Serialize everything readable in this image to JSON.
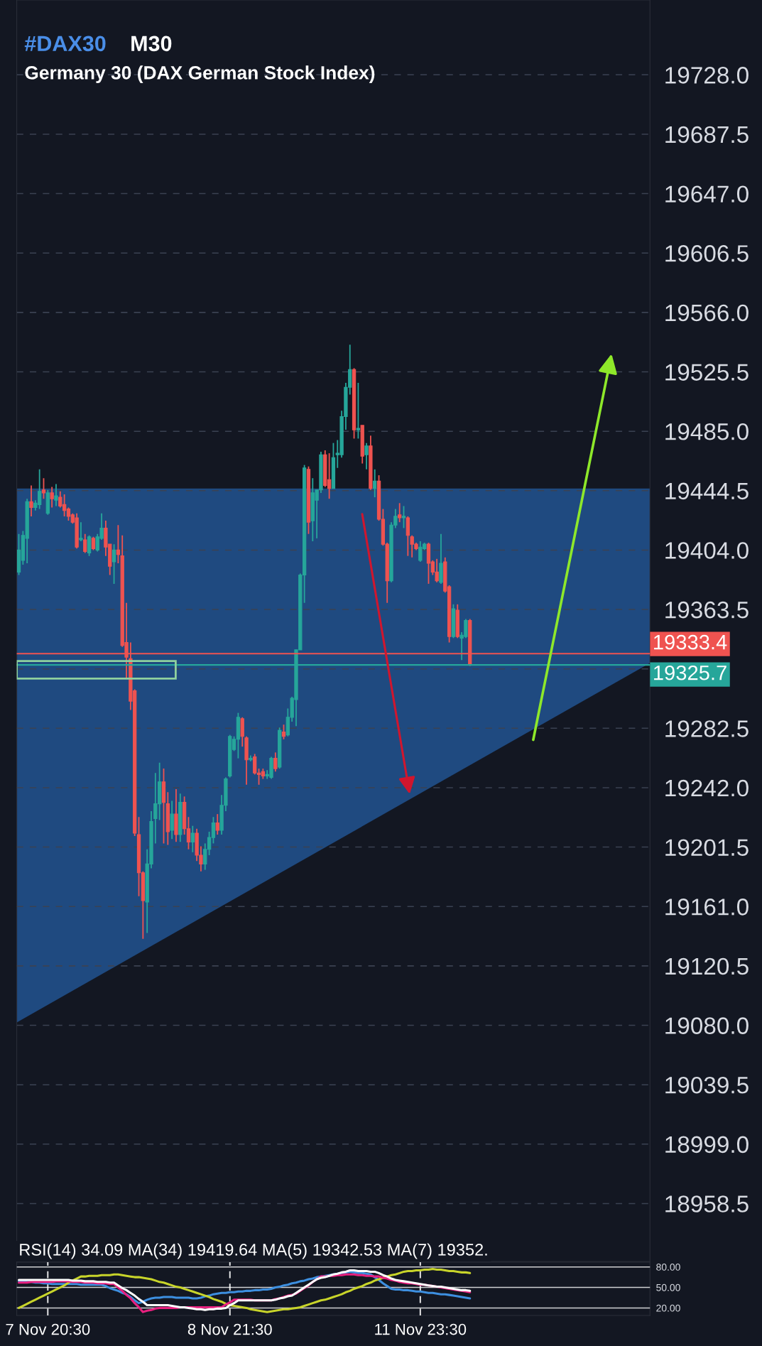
{
  "chart_data": [
    {
      "type": "candlestick",
      "title": "#DAX30",
      "subtitle": "Germany 30 (DAX German Stock Index)",
      "annotations": [
        "M30"
      ],
      "categories": [
        null,
        null,
        null,
        null,
        null,
        null,
        null,
        null,
        null,
        null,
        null,
        null,
        null,
        null,
        null,
        null,
        null,
        null,
        null,
        null,
        null,
        null,
        null,
        null,
        null,
        null,
        null,
        null,
        null,
        null,
        null,
        null,
        null,
        null,
        null,
        null,
        null,
        null,
        null,
        null,
        null,
        null,
        null,
        null,
        null,
        null,
        null,
        null,
        null,
        null,
        null,
        null,
        null,
        null,
        null,
        null,
        null,
        null,
        null,
        null,
        null,
        null,
        null,
        null,
        null,
        null,
        null,
        null,
        null,
        null,
        null,
        null,
        null,
        null,
        null,
        null,
        null,
        null,
        null,
        null,
        null,
        null,
        null,
        null,
        null,
        null,
        null,
        null,
        null,
        null,
        null,
        null,
        null,
        null,
        null,
        null,
        null,
        null,
        null,
        null,
        null,
        null,
        null,
        null,
        null,
        null,
        null,
        null,
        null,
        null,
        null,
        null,
        null,
        null,
        null,
        null,
        null,
        null,
        null,
        null,
        null,
        null,
        null,
        null,
        null,
        null,
        null,
        null,
        null,
        null,
        null,
        null,
        null,
        null,
        null,
        null,
        null,
        null,
        null,
        null,
        null,
        null,
        null,
        null,
        null,
        null,
        null,
        null,
        null,
        null,
        null,
        null,
        null
      ],
      "ohlc": [
        [
          19389,
          19415,
          19387,
          19404
        ],
        [
          19397,
          19417,
          19394,
          19414
        ],
        [
          19412,
          19439,
          19395,
          19437
        ],
        [
          19437,
          19448,
          19427,
          19433
        ],
        [
          19433,
          19438,
          19431,
          19436
        ],
        [
          19435,
          19459,
          19432,
          19444
        ],
        [
          19445,
          19453,
          19439,
          19443
        ],
        [
          19429,
          19445,
          19428,
          19443
        ],
        [
          19443,
          19447,
          19433,
          19439
        ],
        [
          19438,
          19449,
          19434,
          19441
        ],
        [
          19440,
          19444,
          19433,
          19434
        ],
        [
          19435,
          19442,
          19427,
          19431
        ],
        [
          19432,
          19433,
          19424,
          19427
        ],
        [
          19428,
          19429,
          19422,
          19423
        ],
        [
          19426,
          19429,
          19405,
          19406
        ],
        [
          19411,
          19423,
          19410,
          19412
        ],
        [
          19411,
          19415,
          19402,
          19403
        ],
        [
          19402,
          19414,
          19400,
          19413
        ],
        [
          19412,
          19413,
          19404,
          19405
        ],
        [
          19404,
          19415,
          19403,
          19413
        ],
        [
          19412,
          19429,
          19411,
          19419
        ],
        [
          19419,
          19424,
          19400,
          19406
        ],
        [
          19408,
          19408,
          19387,
          19393
        ],
        [
          19396,
          19408,
          19381,
          19404
        ],
        [
          19404,
          19421,
          19395,
          19401
        ],
        [
          19400,
          19414,
          19338,
          19339
        ],
        [
          19341,
          19368,
          19317,
          19331
        ],
        [
          19330,
          19341,
          19295,
          19301
        ],
        [
          19308,
          19309,
          19209,
          19211
        ],
        [
          19210,
          19222,
          19168,
          19184
        ],
        [
          19184,
          19185,
          19139,
          19165
        ],
        [
          19164,
          19200,
          19143,
          19190
        ],
        [
          19190,
          19226,
          19187,
          19219
        ],
        [
          19221,
          19252,
          19204,
          19231
        ],
        [
          19231,
          19259,
          19220,
          19246
        ],
        [
          19246,
          19255,
          19204,
          19232
        ],
        [
          19231,
          19239,
          19203,
          19212
        ],
        [
          19213,
          19233,
          19207,
          19224
        ],
        [
          19224,
          19241,
          19205,
          19210
        ],
        [
          19210,
          19238,
          19205,
          19232
        ],
        [
          19232,
          19236,
          19210,
          19214
        ],
        [
          19214,
          19222,
          19200,
          19205
        ],
        [
          19205,
          19216,
          19198,
          19211
        ],
        [
          19211,
          19214,
          19192,
          19196
        ],
        [
          19196,
          19202,
          19185,
          19190
        ],
        [
          19190,
          19204,
          19186,
          19200
        ],
        [
          19200,
          19212,
          19196,
          19208
        ],
        [
          19208,
          19222,
          19204,
          19218
        ],
        [
          19218,
          19224,
          19210,
          19213
        ],
        [
          19213,
          19237,
          19210,
          19230
        ],
        [
          19230,
          19249,
          19226,
          19248
        ],
        [
          19250,
          19278,
          19249,
          19277
        ],
        [
          19268,
          19277,
          19267,
          19275
        ],
        [
          19275,
          19293,
          19262,
          19290
        ],
        [
          19289,
          19290,
          19270,
          19277
        ],
        [
          19276,
          19277,
          19244,
          19261
        ],
        [
          19261,
          19264,
          19260,
          19262
        ],
        [
          19263,
          19265,
          19251,
          19252
        ],
        [
          19252,
          19255,
          19244,
          19251
        ],
        [
          19253,
          19255,
          19248,
          19250
        ],
        [
          19250,
          19254,
          19248,
          19251
        ],
        [
          19249,
          19263,
          19248,
          19262
        ],
        [
          19262,
          19266,
          19253,
          19255
        ],
        [
          19256,
          19283,
          19255,
          19281
        ],
        [
          19280,
          19285,
          19275,
          19277
        ],
        [
          19278,
          19296,
          19277,
          19290
        ],
        [
          19290,
          19304,
          19287,
          19303
        ],
        [
          19302,
          19336,
          19284,
          19336
        ],
        [
          19336,
          19388,
          19336,
          19387
        ],
        [
          19387,
          19462,
          19368,
          19460
        ],
        [
          19459,
          19461,
          19415,
          19423
        ],
        [
          19424,
          19453,
          19410,
          19443
        ],
        [
          19438,
          19445,
          19412,
          19445
        ],
        [
          19445,
          19471,
          19443,
          19469
        ],
        [
          19469,
          19472,
          19447,
          19448
        ],
        [
          19452,
          19470,
          19439,
          19446
        ],
        [
          19446,
          19477,
          19446,
          19467
        ],
        [
          19469,
          19479,
          19460,
          19470
        ],
        [
          19469,
          19499,
          19467,
          19495
        ],
        [
          19495,
          19518,
          19486,
          19515
        ],
        [
          19515,
          19544,
          19510,
          19527
        ],
        [
          19527,
          19528,
          19480,
          19486
        ],
        [
          19486,
          19518,
          19480,
          19487
        ],
        [
          19489,
          19489,
          19463,
          19468
        ],
        [
          19469,
          19477,
          19459,
          19475
        ],
        [
          19475,
          19482,
          19445,
          19446
        ],
        [
          19446,
          19459,
          19440,
          19451
        ],
        [
          19451,
          19455,
          19424,
          19425
        ],
        [
          19425,
          19432,
          19407,
          19408
        ],
        [
          19408,
          19409,
          19368,
          19383
        ],
        [
          19383,
          19423,
          19382,
          19421
        ],
        [
          19421,
          19432,
          19419,
          19427
        ],
        [
          19428,
          19436,
          19423,
          19426
        ],
        [
          19426,
          19434,
          19419,
          19427
        ],
        [
          19426,
          19427,
          19400,
          19414
        ],
        [
          19413,
          19414,
          19399,
          19408
        ],
        [
          19408,
          19409,
          19404,
          19405
        ],
        [
          19397,
          19410,
          19396,
          19406
        ],
        [
          19405,
          19409,
          19404,
          19408
        ],
        [
          19408,
          19409,
          19381,
          19395
        ],
        [
          19396,
          19397,
          19387,
          19389
        ],
        [
          19389,
          19398,
          19382,
          19383
        ],
        [
          19382,
          19415,
          19381,
          19395
        ],
        [
          19396,
          19399,
          19375,
          19376
        ],
        [
          19379,
          19380,
          19341,
          19345
        ],
        [
          19345,
          19367,
          19344,
          19364
        ],
        [
          19363,
          19367,
          19344,
          19345
        ],
        [
          19344,
          19348,
          19329,
          19346
        ],
        [
          19345,
          19357,
          19344,
          19356
        ],
        [
          19356,
          19357,
          19325,
          19326
        ],
        null,
        null,
        null,
        null,
        null,
        null,
        null,
        null,
        null,
        null,
        null,
        null,
        null,
        null,
        null,
        null,
        null,
        null,
        null,
        null,
        null,
        null,
        null,
        null,
        null,
        null,
        null,
        null,
        null,
        null,
        null,
        null,
        null,
        null,
        null,
        null,
        null,
        null,
        null,
        null,
        null,
        null,
        null
      ],
      "colors": [
        "#26a69a",
        "#26a69a",
        "#26a69a",
        "#ef5350",
        "#26a69a",
        "#26a69a",
        "#ef5350",
        "#26a69a",
        "#ef5350",
        "#26a69a",
        "#ef5350",
        "#ef5350",
        "#ef5350",
        "#ef5350",
        "#ef5350",
        "#26a69a",
        "#ef5350",
        "#26a69a",
        "#ef5350",
        "#26a69a",
        "#26a69a",
        "#ef5350",
        "#ef5350",
        "#26a69a",
        "#ef5350",
        "#ef5350",
        "#ef5350",
        "#ef5350",
        "#ef5350",
        "#ef5350",
        "#ef5350",
        "#26a69a",
        "#26a69a",
        "#26a69a",
        "#26a69a",
        "#ef5350",
        "#ef5350",
        "#26a69a",
        "#ef5350",
        "#26a69a",
        "#ef5350",
        "#ef5350",
        "#26a69a",
        "#ef5350",
        "#ef5350",
        "#26a69a",
        "#26a69a",
        "#26a69a",
        "#ef5350",
        "#26a69a",
        "#26a69a",
        "#26a69a",
        "#26a69a",
        "#26a69a",
        "#ef5350",
        "#ef5350",
        "#26a69a",
        "#ef5350",
        "#ef5350",
        "#ef5350",
        "#26a69a",
        "#26a69a",
        "#ef5350",
        "#26a69a",
        "#ef5350",
        "#26a69a",
        "#26a69a",
        "#26a69a",
        "#26a69a",
        "#26a69a",
        "#ef5350",
        "#26a69a",
        "#26a69a",
        "#26a69a",
        "#ef5350",
        "#ef5350",
        "#26a69a",
        "#26a69a",
        "#26a69a",
        "#26a69a",
        "#26a69a",
        "#ef5350",
        "#26a69a",
        "#ef5350",
        "#26a69a",
        "#ef5350",
        "#26a69a",
        "#ef5350",
        "#ef5350",
        "#ef5350",
        "#26a69a",
        "#26a69a",
        "#ef5350",
        "#26a69a",
        "#ef5350",
        "#ef5350",
        "#ef5350",
        "#26a69a",
        "#26a69a",
        "#ef5350",
        "#ef5350",
        "#ef5350",
        "#26a69a",
        "#ef5350",
        "#ef5350",
        "#26a69a",
        "#ef5350",
        "#26a69a",
        "#26a69a",
        "#ef5350",
        null,
        null,
        null,
        null,
        null,
        null,
        null,
        null,
        null,
        null,
        null,
        null,
        null,
        null,
        null,
        null,
        null,
        null,
        null,
        null,
        null,
        null,
        null,
        null,
        null,
        null,
        null,
        null,
        null,
        null,
        null,
        null,
        null,
        null,
        null,
        null,
        null,
        null,
        null,
        null,
        null,
        null,
        null
      ],
      "ylim": [
        18919,
        19779
      ],
      "yticks": [
        {
          "value": 18958.5,
          "label": "18958.5"
        },
        {
          "value": 18999,
          "label": "18999.0"
        },
        {
          "value": 19039.5,
          "label": "19039.5"
        },
        {
          "value": 19080,
          "label": "19080.0"
        },
        {
          "value": 19120.5,
          "label": "19120.5"
        },
        {
          "value": 19161,
          "label": "19161.0"
        },
        {
          "value": 19201.5,
          "label": "19201.5"
        },
        {
          "value": 19242,
          "label": "19242.0"
        },
        {
          "value": 19282.5,
          "label": "19282.5"
        },
        {
          "value": 19323,
          "label": null
        },
        {
          "value": 19363.5,
          "label": "19363.5"
        },
        {
          "value": 19404,
          "label": "19404.0"
        },
        {
          "value": 19444.5,
          "label": "19444.5"
        },
        {
          "value": 19485,
          "label": "19485.0"
        },
        {
          "value": 19525.5,
          "label": "19525.5"
        },
        {
          "value": 19566,
          "label": "19566.0"
        },
        {
          "value": 19606.5,
          "label": "19606.5"
        },
        {
          "value": 19647,
          "label": "19647.0"
        },
        {
          "value": 19687.5,
          "label": "19687.5"
        },
        {
          "value": 19728,
          "label": "19728.0"
        }
      ],
      "ref_lines": [
        {
          "axis": "y",
          "value": 19333.4,
          "label": "19333.4",
          "color": "#ef5350"
        },
        {
          "axis": "y",
          "value": 19325.7,
          "label": "19325.7",
          "color": "#26a69a"
        }
      ],
      "grid": "y",
      "tick_labels": "y"
    },
    {
      "type": "line",
      "annotations": [
        "RSI(14) 34.09 MA(34) 19419.64 MA(5) 19342.53 MA(7) 19352."
      ],
      "categories": [
        null,
        null,
        null,
        null,
        null,
        null,
        null,
        "7 Nov 20:30",
        null,
        null,
        null,
        null,
        null,
        null,
        null,
        null,
        null,
        null,
        null,
        null,
        null,
        null,
        null,
        null,
        null,
        null,
        null,
        null,
        null,
        null,
        null,
        null,
        null,
        null,
        null,
        null,
        null,
        null,
        null,
        null,
        null,
        null,
        null,
        null,
        null,
        null,
        null,
        null,
        null,
        null,
        null,
        "8 Nov 21:30",
        null,
        null,
        null,
        null,
        null,
        null,
        null,
        null,
        null,
        null,
        null,
        null,
        null,
        null,
        null,
        null,
        null,
        null,
        null,
        null,
        null,
        null,
        null,
        null,
        null,
        null,
        null,
        null,
        null,
        null,
        null,
        null,
        null,
        null,
        null,
        null,
        null,
        null,
        null,
        null,
        null,
        null,
        null,
        null,
        null,
        "11 Nov 23:30",
        null,
        null,
        null,
        null,
        null,
        null,
        null,
        null,
        null,
        null,
        null,
        null,
        null,
        null,
        null,
        null,
        null,
        null,
        null,
        null,
        null,
        null,
        null,
        null,
        null,
        null,
        null,
        null,
        null,
        null,
        null,
        null,
        null,
        null,
        null,
        null,
        null,
        null,
        null,
        null,
        null,
        null,
        null,
        null,
        null,
        null,
        null,
        null,
        null,
        null,
        null,
        null,
        null,
        null,
        null
      ],
      "series": [
        {
          "color": "#3d8fe0",
          "values": [
            59,
            59,
            58,
            58,
            57,
            57,
            56,
            56,
            55,
            55,
            55,
            55,
            55,
            55,
            55,
            54,
            54,
            54,
            54,
            54,
            54,
            52,
            49,
            47,
            45,
            42,
            40,
            36,
            31,
            27,
            29,
            32,
            34,
            35,
            35,
            36,
            36,
            36,
            35,
            35,
            35,
            35,
            34,
            34,
            35,
            37,
            38,
            40,
            41,
            42,
            42,
            43,
            43,
            44,
            44,
            45,
            45,
            46,
            46,
            47,
            47,
            48,
            50,
            51,
            53,
            54,
            56,
            57,
            59,
            60,
            62,
            63,
            65,
            66,
            67,
            68,
            69,
            70,
            71,
            72,
            73,
            72,
            71,
            71,
            70,
            69,
            65,
            61,
            56,
            52,
            48,
            47,
            47,
            46,
            46,
            45,
            44,
            44,
            43,
            42,
            42,
            41,
            40,
            40,
            39,
            38,
            37,
            36,
            35,
            34,
            null,
            null,
            null,
            null,
            null,
            null,
            null,
            null,
            null,
            null,
            null,
            null,
            null,
            null,
            null,
            null,
            null,
            null,
            null,
            null,
            null,
            null,
            null,
            null,
            null,
            null,
            null,
            null,
            null,
            null,
            null,
            null,
            null,
            null,
            null,
            null,
            null,
            null,
            null,
            null,
            null,
            null,
            null
          ]
        },
        {
          "color": "#c8d42a",
          "values": [
            20,
            23,
            26,
            29,
            32,
            35,
            38,
            41,
            44,
            47,
            50,
            53,
            57,
            60,
            63,
            66,
            66,
            67,
            67,
            67,
            68,
            68,
            68,
            69,
            69,
            68,
            67,
            66,
            65,
            65,
            64,
            63,
            62,
            60,
            58,
            57,
            55,
            53,
            51,
            50,
            48,
            46,
            44,
            42,
            40,
            38,
            36,
            33,
            31,
            29,
            26,
            24,
            23,
            22,
            21,
            20,
            18,
            17,
            16,
            15,
            14,
            15,
            16,
            17,
            18,
            18,
            19,
            20,
            21,
            23,
            25,
            27,
            29,
            31,
            32,
            34,
            36,
            38,
            40,
            43,
            45,
            48,
            50,
            52,
            55,
            57,
            60,
            62,
            64,
            66,
            68,
            69,
            71,
            73,
            74,
            74,
            75,
            75,
            76,
            76,
            77,
            76,
            76,
            75,
            74,
            74,
            73,
            72,
            72,
            71,
            null,
            null,
            null,
            null,
            null,
            null,
            null,
            null,
            null,
            null,
            null,
            null,
            null,
            null,
            null,
            null,
            null,
            null,
            null,
            null,
            null,
            null,
            null,
            null,
            null,
            null,
            null,
            null,
            null,
            null,
            null,
            null,
            null,
            null,
            null,
            null,
            null,
            null,
            null,
            null,
            null,
            null,
            null
          ]
        },
        {
          "color": "#e8207f",
          "values": [
            57,
            57,
            57,
            58,
            58,
            58,
            58,
            58,
            58,
            59,
            59,
            59,
            59,
            58,
            58,
            58,
            57,
            57,
            57,
            56,
            56,
            56,
            55,
            55,
            50,
            45,
            39,
            34,
            27,
            21,
            14,
            16,
            17,
            19,
            20,
            20,
            20,
            20,
            20,
            21,
            21,
            21,
            21,
            21,
            21,
            21,
            21,
            21,
            21,
            21,
            25,
            28,
            32,
            32,
            32,
            32,
            32,
            31,
            31,
            31,
            31,
            31,
            33,
            34,
            36,
            38,
            39,
            41,
            45,
            49,
            53,
            58,
            62,
            66,
            66,
            67,
            67,
            68,
            68,
            69,
            69,
            69,
            68,
            68,
            67,
            67,
            66,
            66,
            64,
            63,
            61,
            60,
            58,
            57,
            56,
            56,
            55,
            54,
            54,
            53,
            52,
            51,
            50,
            49,
            48,
            47,
            46,
            45,
            44,
            43,
            null,
            null,
            null,
            null,
            null,
            null,
            null,
            null,
            null,
            null,
            null,
            null,
            null,
            null,
            null,
            null,
            null,
            null,
            null,
            null,
            null,
            null,
            null,
            null,
            null,
            null,
            null,
            null,
            null,
            null,
            null,
            null,
            null,
            null,
            null,
            null,
            null,
            null,
            null,
            null,
            null,
            null,
            null
          ]
        },
        {
          "color": "#ffffff",
          "values": [
            61,
            61,
            61,
            61,
            61,
            61,
            61,
            61,
            61,
            61,
            61,
            61,
            61,
            60,
            60,
            60,
            59,
            59,
            59,
            58,
            58,
            58,
            57,
            57,
            53,
            49,
            46,
            42,
            38,
            33,
            29,
            24,
            24,
            24,
            24,
            24,
            24,
            23,
            22,
            21,
            21,
            20,
            19,
            18,
            18,
            17,
            18,
            18,
            19,
            19,
            20,
            24,
            27,
            31,
            31,
            31,
            31,
            31,
            31,
            31,
            31,
            31,
            32,
            34,
            35,
            37,
            38,
            42,
            46,
            50,
            54,
            58,
            62,
            64,
            65,
            67,
            69,
            70,
            72,
            73,
            75,
            75,
            74,
            74,
            74,
            73,
            73,
            71,
            68,
            66,
            63,
            61,
            60,
            59,
            58,
            57,
            56,
            55,
            54,
            53,
            52,
            51,
            51,
            50,
            49,
            48,
            47,
            46,
            46,
            45,
            null,
            null,
            null,
            null,
            null,
            null,
            null,
            null,
            null,
            null,
            null,
            null,
            null,
            null,
            null,
            null,
            null,
            null,
            null,
            null,
            null,
            null,
            null,
            null,
            null,
            null,
            null,
            null,
            null,
            null,
            null,
            null,
            null,
            null,
            null,
            null,
            null,
            null,
            null,
            null,
            null,
            null,
            null
          ]
        }
      ],
      "ylim": [
        9,
        87
      ],
      "yticks": [
        {
          "value": 20,
          "label": "20.00"
        },
        {
          "value": 50,
          "label": "50.00"
        },
        {
          "value": 80,
          "label": "80.00"
        }
      ],
      "grid": true
    }
  ]
}
